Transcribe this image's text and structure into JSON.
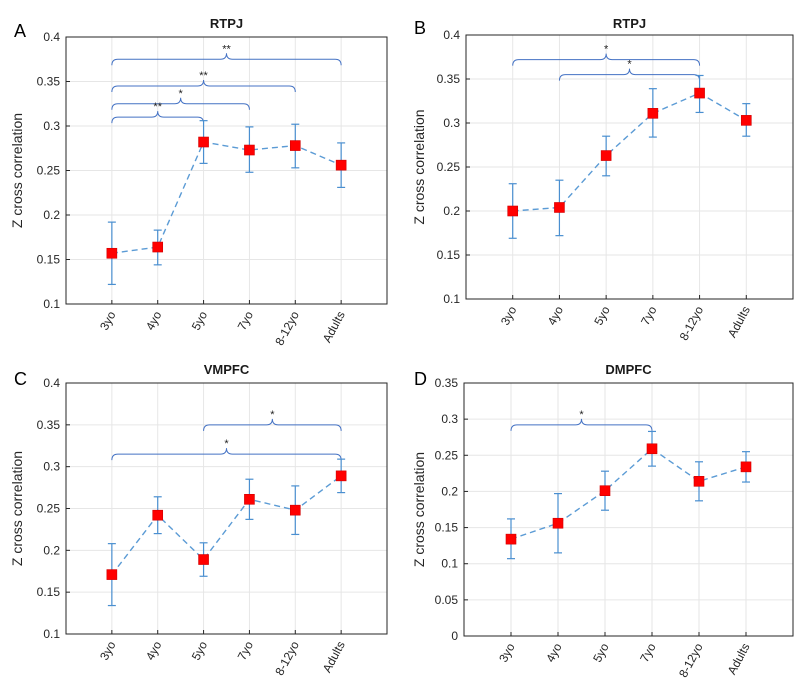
{
  "chart_data": [
    {
      "panel": "A",
      "type": "line",
      "title": "RTPJ",
      "ylabel": "Z cross correlation",
      "ylim": [
        0.1,
        0.4
      ],
      "yticks": [
        0.1,
        0.15,
        0.2,
        0.25,
        0.3,
        0.35,
        0.4
      ],
      "categories": [
        "3yo",
        "4yo",
        "5yo",
        "7yo",
        "8-12yo",
        "Adults"
      ],
      "values": [
        0.157,
        0.164,
        0.282,
        0.273,
        0.278,
        0.256
      ],
      "err_low": [
        0.122,
        0.144,
        0.258,
        0.248,
        0.253,
        0.231
      ],
      "err_high": [
        0.192,
        0.183,
        0.306,
        0.299,
        0.302,
        0.281
      ],
      "grid": true,
      "significance": [
        {
          "from": 0,
          "to": 5,
          "y": 0.375,
          "label": "**"
        },
        {
          "from": 0,
          "to": 4,
          "y": 0.345,
          "label": "**"
        },
        {
          "from": 0,
          "to": 3,
          "y": 0.325,
          "label": "*"
        },
        {
          "from": 0,
          "to": 2,
          "y": 0.31,
          "label": "**"
        }
      ]
    },
    {
      "panel": "B",
      "type": "line",
      "title": "RTPJ",
      "ylabel": "Z cross correlation",
      "ylim": [
        0.1,
        0.4
      ],
      "yticks": [
        0.1,
        0.15,
        0.2,
        0.25,
        0.3,
        0.35,
        0.4
      ],
      "categories": [
        "3yo",
        "4yo",
        "5yo",
        "7yo",
        "8-12yo",
        "Adults"
      ],
      "values": [
        0.2,
        0.204,
        0.263,
        0.311,
        0.334,
        0.303
      ],
      "err_low": [
        0.169,
        0.172,
        0.24,
        0.284,
        0.312,
        0.285
      ],
      "err_high": [
        0.231,
        0.235,
        0.285,
        0.339,
        0.354,
        0.322
      ],
      "grid": true,
      "significance": [
        {
          "from": 0,
          "to": 4,
          "y": 0.372,
          "label": "*"
        },
        {
          "from": 1,
          "to": 4,
          "y": 0.355,
          "label": "*"
        }
      ]
    },
    {
      "panel": "C",
      "type": "line",
      "title": "VMPFC",
      "ylabel": "Z cross correlation",
      "ylim": [
        0.1,
        0.4
      ],
      "yticks": [
        0.1,
        0.15,
        0.2,
        0.25,
        0.3,
        0.35,
        0.4
      ],
      "categories": [
        "3yo",
        "4yo",
        "5yo",
        "7yo",
        "8-12yo",
        "Adults"
      ],
      "values": [
        0.171,
        0.242,
        0.189,
        0.261,
        0.248,
        0.289
      ],
      "err_low": [
        0.134,
        0.22,
        0.169,
        0.237,
        0.219,
        0.269
      ],
      "err_high": [
        0.208,
        0.264,
        0.209,
        0.285,
        0.277,
        0.309
      ],
      "grid": true,
      "significance": [
        {
          "from": 2,
          "to": 5,
          "y": 0.35,
          "label": "*"
        },
        {
          "from": 0,
          "to": 5,
          "y": 0.315,
          "label": "*"
        }
      ]
    },
    {
      "panel": "D",
      "type": "line",
      "title": "DMPFC",
      "ylabel": "Z cross correlation",
      "ylim": [
        0,
        0.35
      ],
      "yticks": [
        0,
        0.05,
        0.1,
        0.15,
        0.2,
        0.25,
        0.3,
        0.35
      ],
      "categories": [
        "3yo",
        "4yo",
        "5yo",
        "7yo",
        "8-12yo",
        "Adults"
      ],
      "values": [
        0.134,
        0.156,
        0.201,
        0.259,
        0.214,
        0.234
      ],
      "err_low": [
        0.107,
        0.115,
        0.174,
        0.235,
        0.187,
        0.213
      ],
      "err_high": [
        0.162,
        0.197,
        0.228,
        0.283,
        0.241,
        0.255
      ],
      "grid": true,
      "significance": [
        {
          "from": 0,
          "to": 3,
          "y": 0.292,
          "label": "*"
        }
      ]
    }
  ],
  "colors": {
    "marker": "#ff0000",
    "line": "#5b9bd5",
    "errorbar": "#4a8fd0",
    "bracket": "#4472c4",
    "grid": "#e6e6e6",
    "axis": "#262626"
  }
}
